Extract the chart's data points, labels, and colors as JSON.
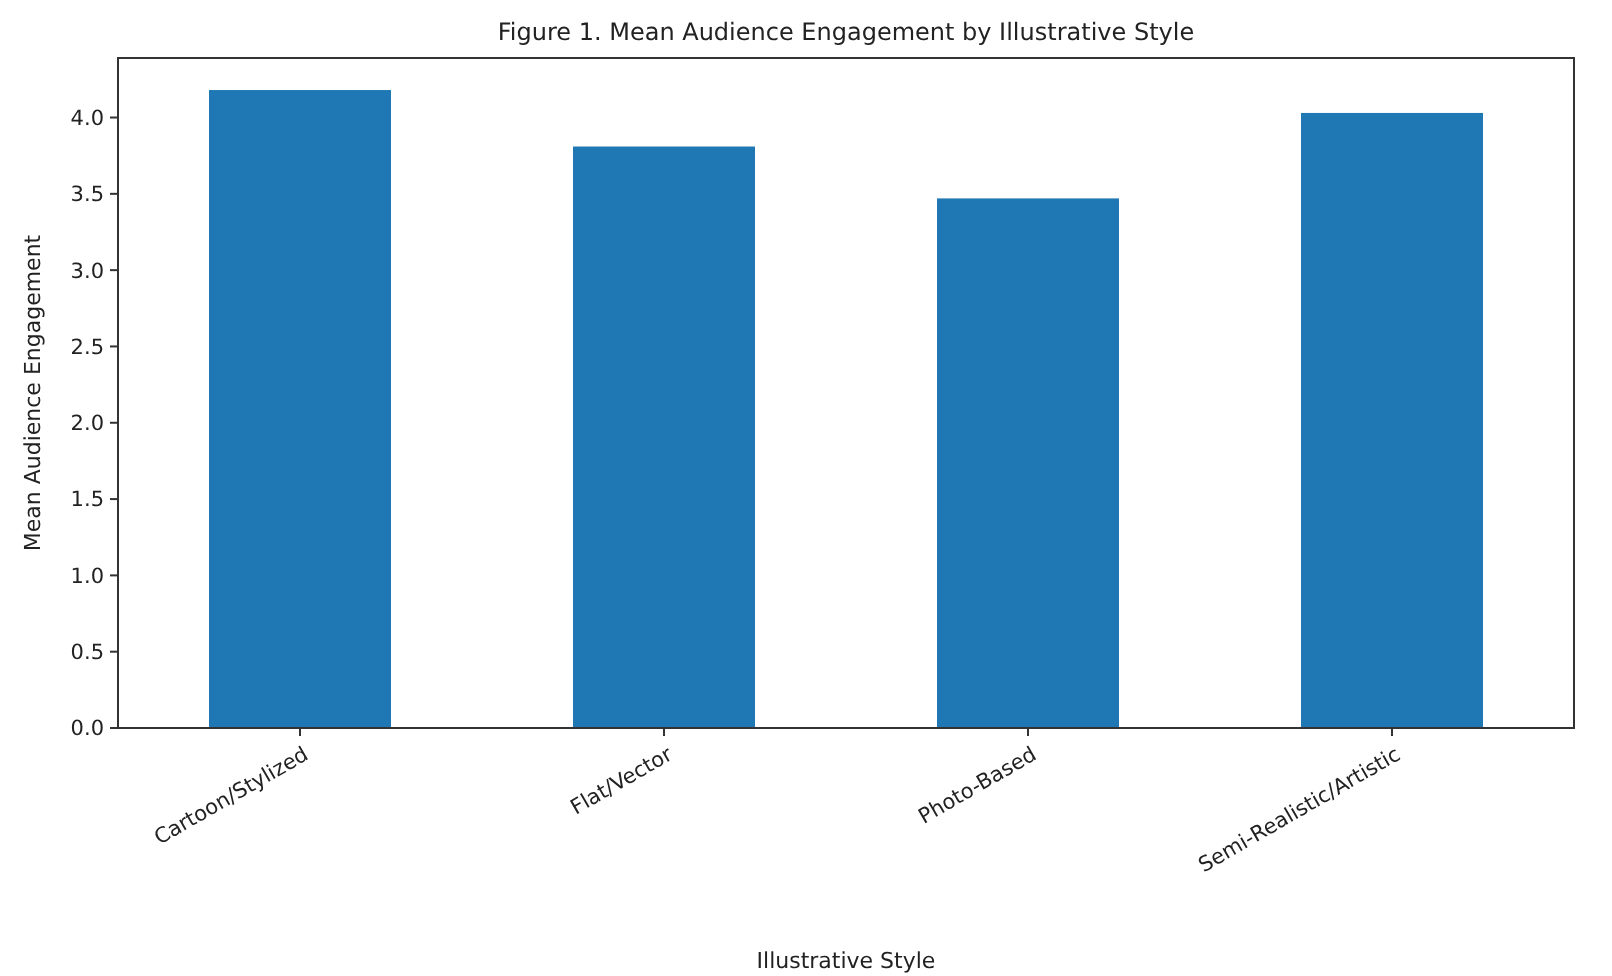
{
  "chart_data": {
    "type": "bar",
    "title": "Figure 1. Mean Audience Engagement by Illustrative Style",
    "xlabel": "Illustrative Style",
    "ylabel": "Mean Audience Engagement",
    "categories": [
      "Cartoon/Stylized",
      "Flat/Vector",
      "Photo-Based",
      "Semi-Realistic/Artistic"
    ],
    "values": [
      4.18,
      3.81,
      3.47,
      4.03
    ],
    "color": "#1f77b4",
    "ylim": [
      0,
      4.39
    ],
    "yticks": [
      {
        "value": 0,
        "label": "0.0"
      },
      {
        "value": 0.5,
        "label": "0.5"
      },
      {
        "value": 1,
        "label": "1.0"
      },
      {
        "value": 1.5,
        "label": "1.5"
      },
      {
        "value": 2,
        "label": "2.0"
      },
      {
        "value": 2.5,
        "label": "2.5"
      },
      {
        "value": 3,
        "label": "3.0"
      },
      {
        "value": 3.5,
        "label": "3.5"
      },
      {
        "value": 4,
        "label": "4.0"
      }
    ],
    "grid": false
  }
}
